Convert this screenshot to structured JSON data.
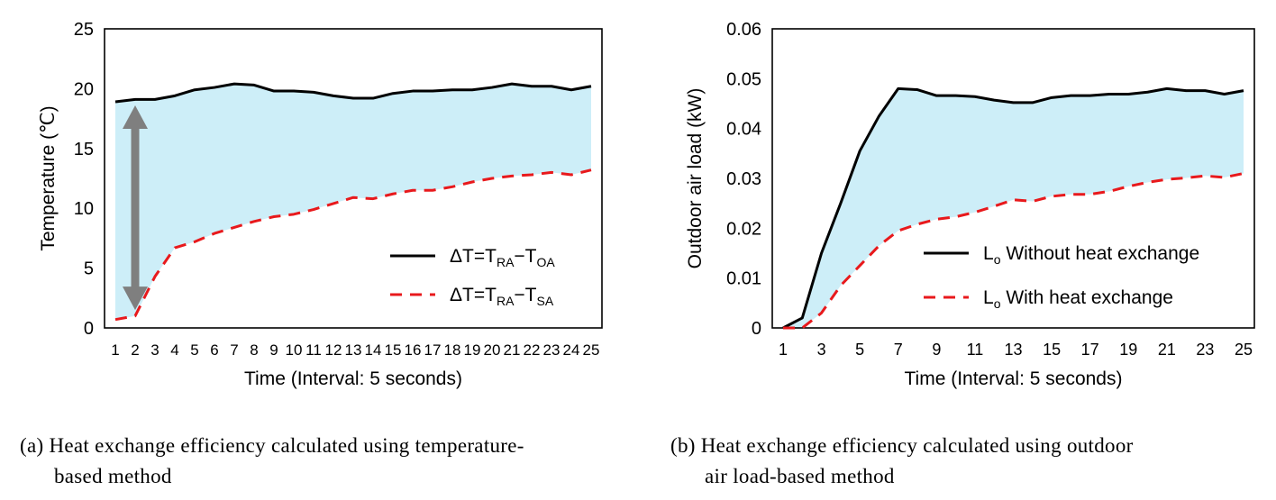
{
  "chart_data": [
    {
      "type": "area",
      "ylabel": "Temperature (℃)",
      "xlabel": "Time (Interval: 5 seconds)",
      "ylim": [
        0,
        25
      ],
      "yticks": [
        "0",
        "5",
        "10",
        "15",
        "20",
        "25"
      ],
      "xticks": [
        "1",
        "2",
        "3",
        "4",
        "5",
        "6",
        "7",
        "8",
        "9",
        "10",
        "11",
        "12",
        "13",
        "14",
        "15",
        "16",
        "17",
        "18",
        "19",
        "20",
        "21",
        "22",
        "23",
        "24",
        "25"
      ],
      "x": [
        1,
        2,
        3,
        4,
        5,
        6,
        7,
        8,
        9,
        10,
        11,
        12,
        13,
        14,
        15,
        16,
        17,
        18,
        19,
        20,
        21,
        22,
        23,
        24,
        25
      ],
      "series": [
        {
          "name": "ΔT=T_RA−T_OA",
          "legend": {
            "base": "ΔT=T",
            "sub1": "RA",
            "mid": "−T",
            "sub2": "OA"
          },
          "style": "solid",
          "color": "#000000",
          "values": [
            18.9,
            19.1,
            19.1,
            19.4,
            19.9,
            20.1,
            20.4,
            20.3,
            19.8,
            19.8,
            19.7,
            19.4,
            19.2,
            19.2,
            19.6,
            19.8,
            19.8,
            19.9,
            19.9,
            20.1,
            20.4,
            20.2,
            20.2,
            19.9,
            20.2
          ]
        },
        {
          "name": "ΔT=T_RA−T_SA",
          "legend": {
            "base": "ΔT=T",
            "sub1": "RA",
            "mid": "−T",
            "sub2": "SA"
          },
          "style": "dashed",
          "color": "#e8191c",
          "values": [
            0.7,
            1.0,
            4.3,
            6.7,
            7.2,
            7.9,
            8.4,
            8.9,
            9.3,
            9.5,
            9.9,
            10.4,
            10.9,
            10.8,
            11.2,
            11.5,
            11.5,
            11.8,
            12.2,
            12.5,
            12.7,
            12.8,
            13.0,
            12.8,
            13.2
          ]
        }
      ],
      "fill_color": "#cdeef8",
      "arrow": {
        "from": 18.6,
        "to": 1.5,
        "x": 2
      },
      "grid": false,
      "legend_position": "bottom-right"
    },
    {
      "type": "area",
      "ylabel": "Outdoor air load (kW)",
      "xlabel": "Time (Interval: 5 seconds)",
      "ylim": [
        0,
        0.06
      ],
      "yticks": [
        "0",
        "0.01",
        "0.02",
        "0.03",
        "0.04",
        "0.05",
        "0.06"
      ],
      "xticks": [
        "1",
        "3",
        "5",
        "7",
        "9",
        "11",
        "13",
        "15",
        "17",
        "19",
        "21",
        "23",
        "25"
      ],
      "x": [
        1,
        2,
        3,
        4,
        5,
        6,
        7,
        8,
        9,
        10,
        11,
        12,
        13,
        14,
        15,
        16,
        17,
        18,
        19,
        20,
        21,
        22,
        23,
        24,
        25
      ],
      "series": [
        {
          "name": "L_o Without heat exchange",
          "legend": {
            "base": "L",
            "sub": "o",
            "rest": " Without heat exchange"
          },
          "style": "solid",
          "color": "#000000",
          "values": [
            0.0,
            0.002,
            0.015,
            0.025,
            0.0355,
            0.0425,
            0.048,
            0.0478,
            0.0466,
            0.0466,
            0.0464,
            0.0457,
            0.0452,
            0.0452,
            0.0462,
            0.0466,
            0.0466,
            0.0469,
            0.0469,
            0.0473,
            0.048,
            0.0476,
            0.0476,
            0.0469,
            0.0476
          ]
        },
        {
          "name": "L_o With heat exchange",
          "legend": {
            "base": "L",
            "sub": "o",
            "rest": " With heat exchange"
          },
          "style": "dashed",
          "color": "#e8191c",
          "values": [
            0.0,
            0.0,
            0.003,
            0.0085,
            0.0125,
            0.0165,
            0.0195,
            0.0208,
            0.0218,
            0.0223,
            0.0232,
            0.0244,
            0.0257,
            0.0254,
            0.0264,
            0.0268,
            0.0268,
            0.0274,
            0.0284,
            0.0292,
            0.0298,
            0.0301,
            0.0305,
            0.0302,
            0.031
          ]
        }
      ],
      "fill_color": "#cdeef8",
      "grid": false,
      "legend_position": "bottom-right"
    }
  ],
  "captions": {
    "a_line1": "(a) Heat exchange efficiency calculated using temperature-",
    "a_line2": "based method",
    "b_line1": "(b) Heat exchange efficiency calculated using outdoor",
    "b_line2": "air load-based method"
  }
}
